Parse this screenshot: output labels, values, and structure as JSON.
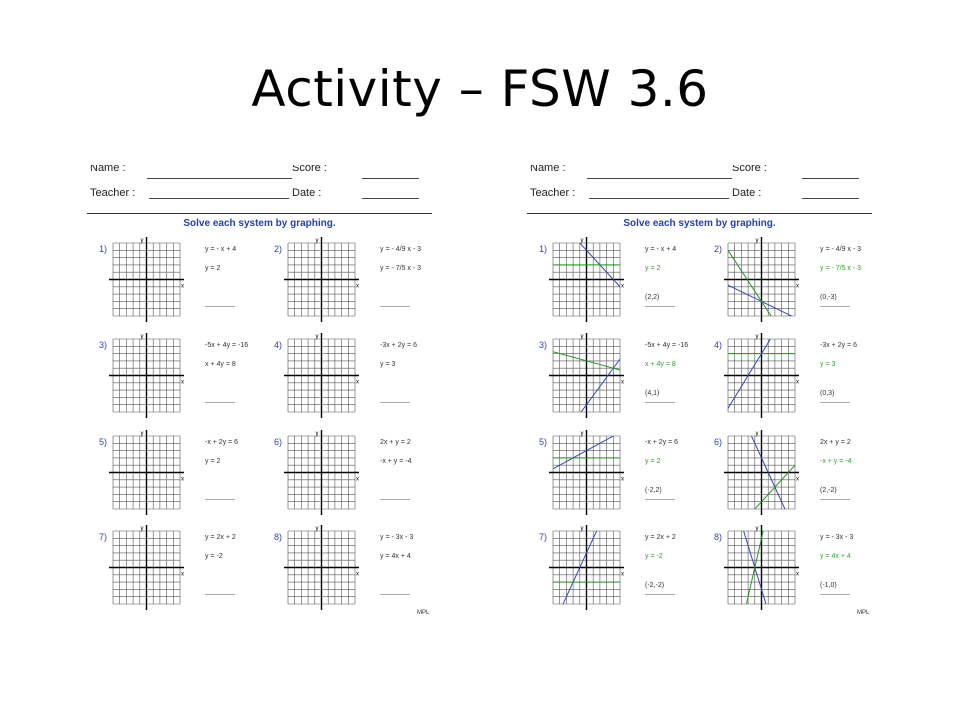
{
  "slide": {
    "title": "Activity – FSW 3.6"
  },
  "sheets": [
    {
      "id": "left",
      "header": {
        "name_label": "Name :",
        "score_label": "Score :",
        "teacher_label": "Teacher :",
        "date_label": "Date :"
      },
      "instruction": "Solve each system by graphing.",
      "problems": [
        {
          "num": "1)",
          "eq1": "y = - x + 4",
          "eq2": "y = 2",
          "answer": ""
        },
        {
          "num": "2)",
          "eq1": "y = - 4/9 x - 3",
          "eq2": "y = - 7/5 x - 3",
          "answer": ""
        },
        {
          "num": "3)",
          "eq1": "-5x + 4y = -16",
          "eq2": "x + 4y = 8",
          "answer": ""
        },
        {
          "num": "4)",
          "eq1": "-3x + 2y = 6",
          "eq2": "y = 3",
          "answer": ""
        },
        {
          "num": "5)",
          "eq1": "-x + 2y = 6",
          "eq2": "y = 2",
          "answer": ""
        },
        {
          "num": "6)",
          "eq1": "2x + y = 2",
          "eq2": "-x + y = -4",
          "answer": ""
        },
        {
          "num": "7)",
          "eq1": "y = 2x + 2",
          "eq2": "y = -2",
          "answer": ""
        },
        {
          "num": "8)",
          "eq1": "y = - 3x - 3",
          "eq2": "y = 4x + 4",
          "answer": ""
        }
      ]
    },
    {
      "id": "right",
      "header": {
        "name_label": "Name :",
        "score_label": "Score :",
        "teacher_label": "Teacher :",
        "date_label": "Date :"
      },
      "instruction": "Solve each system by graphing.",
      "problems": [
        {
          "num": "1)",
          "eq1": "y = - x + 4",
          "eq2": "y = 2",
          "answer": "(2,2)"
        },
        {
          "num": "2)",
          "eq1": "y = - 4/9 x - 3",
          "eq2": "y = - 7/5 x - 3",
          "answer": "(0,-3)"
        },
        {
          "num": "3)",
          "eq1": "-5x + 4y = -16",
          "eq2": "x + 4y = 8",
          "answer": "(4,1)"
        },
        {
          "num": "4)",
          "eq1": "-3x + 2y = 6",
          "eq2": "y = 3",
          "answer": "(0,3)"
        },
        {
          "num": "5)",
          "eq1": "-x + 2y = 6",
          "eq2": "y = 2",
          "answer": "(-2,2)"
        },
        {
          "num": "6)",
          "eq1": "2x + y = 2",
          "eq2": "-x + y = -4",
          "answer": "(2,-2)"
        },
        {
          "num": "7)",
          "eq1": "y = 2x + 2",
          "eq2": "y = -2",
          "answer": "(-2,-2)"
        },
        {
          "num": "8)",
          "eq1": "y = - 3x - 3",
          "eq2": "y = 4x + 4",
          "answer": "(-1,0)"
        }
      ]
    }
  ],
  "axis_labels": {
    "x": "x",
    "y": "y"
  },
  "logo_text": "MPL",
  "colors": {
    "line1": "#3344cc",
    "line2": "#229922",
    "label": "#3344aa"
  }
}
